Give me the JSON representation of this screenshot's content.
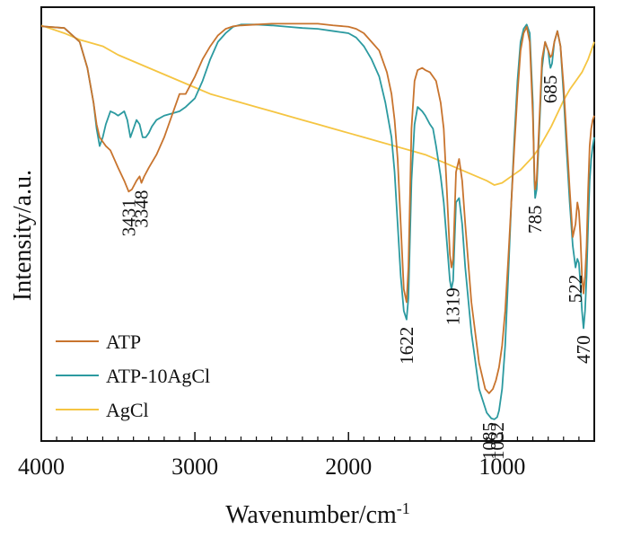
{
  "chart_data": {
    "type": "line",
    "title": "",
    "xlabel": "Wavenumber/cm",
    "xlabel_superscript": "-1",
    "ylabel": "Intensity/a.u.",
    "xlim": [
      4000,
      400
    ],
    "x_reversed": true,
    "ylim": [
      0,
      1
    ],
    "y_ticks_shown": false,
    "grid": false,
    "legend_position": "lower-left",
    "x_ticks": [
      {
        "value": 4000,
        "label": "4000"
      },
      {
        "value": 3000,
        "label": "3000"
      },
      {
        "value": 2000,
        "label": "2000"
      },
      {
        "value": 1000,
        "label": "1000"
      }
    ],
    "series": [
      {
        "name": "ATP",
        "color": "#c8742e",
        "x": [
          4000,
          3850,
          3750,
          3700,
          3660,
          3640,
          3620,
          3600,
          3580,
          3550,
          3500,
          3460,
          3431,
          3410,
          3380,
          3360,
          3348,
          3330,
          3300,
          3250,
          3200,
          3150,
          3100,
          3060,
          3000,
          2950,
          2900,
          2850,
          2800,
          2750,
          2700,
          2600,
          2500,
          2400,
          2300,
          2200,
          2100,
          2000,
          1950,
          1900,
          1850,
          1800,
          1750,
          1720,
          1700,
          1680,
          1660,
          1640,
          1622,
          1610,
          1590,
          1570,
          1550,
          1520,
          1500,
          1470,
          1450,
          1430,
          1400,
          1380,
          1360,
          1340,
          1330,
          1319,
          1300,
          1280,
          1260,
          1240,
          1200,
          1150,
          1110,
          1085,
          1060,
          1040,
          1020,
          1000,
          980,
          960,
          940,
          920,
          900,
          880,
          860,
          840,
          820,
          800,
          790,
          785,
          775,
          760,
          740,
          720,
          700,
          690,
          685,
          675,
          660,
          640,
          620,
          600,
          580,
          560,
          540,
          522,
          510,
          500,
          490,
          480,
          470,
          460,
          450,
          440,
          430,
          420,
          410,
          400
        ],
        "values": [
          0.956,
          0.952,
          0.92,
          0.86,
          0.78,
          0.73,
          0.7,
          0.69,
          0.68,
          0.67,
          0.63,
          0.6,
          0.575,
          0.58,
          0.6,
          0.61,
          0.595,
          0.61,
          0.63,
          0.66,
          0.7,
          0.75,
          0.8,
          0.8,
          0.84,
          0.88,
          0.91,
          0.935,
          0.95,
          0.956,
          0.958,
          0.96,
          0.962,
          0.962,
          0.962,
          0.962,
          0.958,
          0.955,
          0.95,
          0.94,
          0.92,
          0.9,
          0.85,
          0.8,
          0.74,
          0.65,
          0.5,
          0.35,
          0.32,
          0.4,
          0.72,
          0.83,
          0.855,
          0.86,
          0.855,
          0.85,
          0.84,
          0.83,
          0.78,
          0.72,
          0.58,
          0.43,
          0.4,
          0.42,
          0.62,
          0.65,
          0.6,
          0.5,
          0.32,
          0.18,
          0.12,
          0.11,
          0.12,
          0.14,
          0.17,
          0.22,
          0.3,
          0.42,
          0.55,
          0.68,
          0.8,
          0.9,
          0.94,
          0.955,
          0.92,
          0.75,
          0.62,
          0.58,
          0.6,
          0.72,
          0.88,
          0.92,
          0.9,
          0.89,
          0.885,
          0.89,
          0.92,
          0.945,
          0.91,
          0.82,
          0.7,
          0.58,
          0.47,
          0.5,
          0.55,
          0.53,
          0.47,
          0.38,
          0.34,
          0.38,
          0.45,
          0.58,
          0.68,
          0.72,
          0.74,
          0.75
        ]
      },
      {
        "name": "ATP-10AgCl",
        "color": "#2c9aa0",
        "x": [
          4000,
          3850,
          3750,
          3700,
          3660,
          3640,
          3620,
          3600,
          3580,
          3550,
          3520,
          3500,
          3480,
          3460,
          3440,
          3420,
          3400,
          3380,
          3360,
          3340,
          3320,
          3300,
          3280,
          3250,
          3200,
          3150,
          3100,
          3060,
          3000,
          2950,
          2900,
          2850,
          2800,
          2750,
          2700,
          2600,
          2500,
          2400,
          2300,
          2200,
          2100,
          2000,
          1950,
          1900,
          1850,
          1800,
          1760,
          1720,
          1700,
          1680,
          1660,
          1640,
          1622,
          1610,
          1590,
          1570,
          1550,
          1520,
          1500,
          1470,
          1450,
          1430,
          1400,
          1380,
          1360,
          1340,
          1330,
          1319,
          1300,
          1280,
          1260,
          1240,
          1200,
          1150,
          1100,
          1070,
          1050,
          1032,
          1020,
          1000,
          980,
          960,
          940,
          920,
          900,
          880,
          860,
          840,
          820,
          800,
          790,
          785,
          775,
          760,
          740,
          720,
          700,
          690,
          685,
          675,
          660,
          640,
          620,
          600,
          580,
          560,
          540,
          522,
          510,
          500,
          490,
          480,
          470,
          460,
          450,
          440,
          430,
          420,
          410,
          400
        ],
        "values": [
          0.956,
          0.952,
          0.92,
          0.86,
          0.78,
          0.72,
          0.68,
          0.7,
          0.73,
          0.76,
          0.755,
          0.75,
          0.755,
          0.76,
          0.74,
          0.7,
          0.72,
          0.74,
          0.73,
          0.7,
          0.7,
          0.71,
          0.725,
          0.74,
          0.75,
          0.755,
          0.76,
          0.77,
          0.79,
          0.83,
          0.88,
          0.92,
          0.94,
          0.955,
          0.96,
          0.96,
          0.958,
          0.955,
          0.952,
          0.95,
          0.945,
          0.94,
          0.93,
          0.91,
          0.88,
          0.84,
          0.78,
          0.7,
          0.62,
          0.5,
          0.38,
          0.3,
          0.28,
          0.33,
          0.6,
          0.73,
          0.77,
          0.76,
          0.75,
          0.73,
          0.72,
          0.68,
          0.61,
          0.55,
          0.46,
          0.37,
          0.35,
          0.37,
          0.55,
          0.56,
          0.5,
          0.4,
          0.25,
          0.12,
          0.065,
          0.052,
          0.05,
          0.055,
          0.07,
          0.12,
          0.22,
          0.38,
          0.55,
          0.7,
          0.83,
          0.92,
          0.95,
          0.96,
          0.94,
          0.78,
          0.6,
          0.56,
          0.58,
          0.7,
          0.86,
          0.92,
          0.9,
          0.87,
          0.86,
          0.87,
          0.92,
          0.945,
          0.91,
          0.8,
          0.67,
          0.55,
          0.45,
          0.4,
          0.42,
          0.41,
          0.36,
          0.3,
          0.26,
          0.3,
          0.38,
          0.5,
          0.6,
          0.65,
          0.68,
          0.7
        ]
      },
      {
        "name": "AgCl",
        "color": "#f5c542",
        "x": [
          4000,
          3850,
          3750,
          3700,
          3600,
          3500,
          3400,
          3300,
          3200,
          3100,
          3000,
          2900,
          2800,
          2700,
          2600,
          2500,
          2400,
          2300,
          2200,
          2100,
          2000,
          1900,
          1800,
          1700,
          1600,
          1500,
          1400,
          1300,
          1200,
          1100,
          1050,
          1000,
          960,
          920,
          880,
          840,
          800,
          760,
          720,
          680,
          640,
          600,
          560,
          520,
          480,
          440,
          400
        ],
        "values": [
          0.958,
          0.94,
          0.925,
          0.92,
          0.91,
          0.89,
          0.875,
          0.86,
          0.845,
          0.83,
          0.815,
          0.8,
          0.79,
          0.78,
          0.77,
          0.76,
          0.75,
          0.74,
          0.73,
          0.72,
          0.71,
          0.7,
          0.69,
          0.68,
          0.67,
          0.66,
          0.645,
          0.63,
          0.615,
          0.6,
          0.59,
          0.595,
          0.605,
          0.615,
          0.625,
          0.64,
          0.655,
          0.675,
          0.7,
          0.725,
          0.755,
          0.785,
          0.81,
          0.83,
          0.85,
          0.88,
          0.92
        ]
      }
    ],
    "annotations": [
      {
        "label": "3431",
        "x": 3431
      },
      {
        "label": "3348",
        "x": 3348
      },
      {
        "label": "1622",
        "x": 1622
      },
      {
        "label": "1319",
        "x": 1319
      },
      {
        "label": "1085",
        "x": 1085
      },
      {
        "label": "1032",
        "x": 1032
      },
      {
        "label": "785",
        "x": 785
      },
      {
        "label": "685",
        "x": 685
      },
      {
        "label": "522",
        "x": 522
      },
      {
        "label": "470",
        "x": 470
      }
    ]
  }
}
